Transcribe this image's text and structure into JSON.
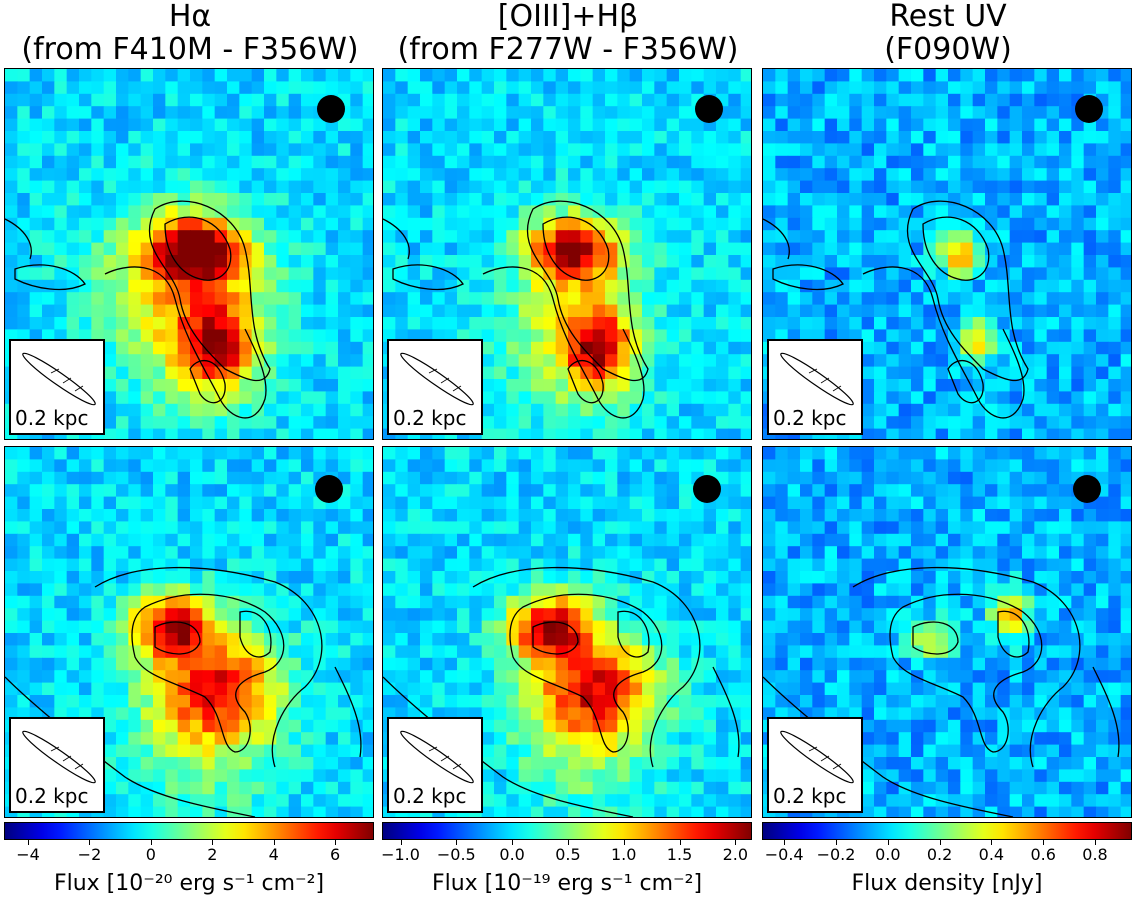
{
  "columns": [
    {
      "title_line1": "Hα",
      "title_line2": "(from F410M - F356W)"
    },
    {
      "title_line1": "[OIII]+Hβ",
      "title_line2": "(from F277W - F356W)"
    },
    {
      "title_line1": "Rest UV",
      "title_line2": "(F090W)"
    }
  ],
  "scale_bar_label": "0.2 kpc",
  "colorbars": [
    {
      "ticks": [
        "−4",
        "−2",
        "0",
        "2",
        "4",
        "6"
      ],
      "label": "Flux [10⁻²⁰ erg s⁻¹ cm⁻²]"
    },
    {
      "ticks": [
        "−1.0",
        "−0.5",
        "0.0",
        "0.5",
        "1.0",
        "1.5",
        "2.0"
      ],
      "label": "Flux [10⁻¹⁹ erg s⁻¹ cm⁻²]"
    },
    {
      "ticks": [
        "−0.4",
        "−0.2",
        "0.0",
        "0.2",
        "0.4",
        "0.6",
        "0.8"
      ],
      "label": "Flux density [nJy]"
    }
  ],
  "colormap": "jet"
}
